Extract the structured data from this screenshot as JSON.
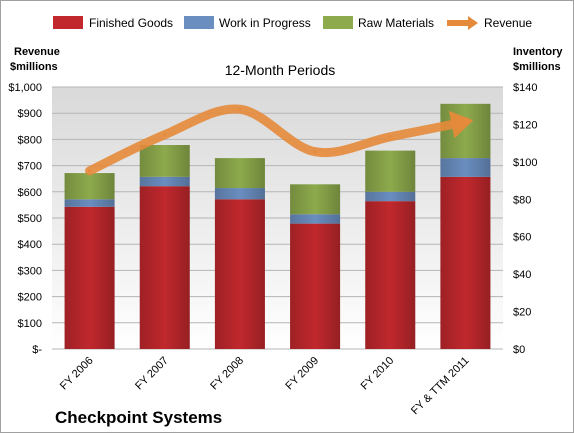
{
  "chart_data": {
    "type": "bar",
    "title": "12-Month Periods",
    "company": "Checkpoint Systems",
    "categories": [
      "FY 2006",
      "FY 2007",
      "FY 2008",
      "FY 2009",
      "FY 2010",
      "FY & TTM 2011"
    ],
    "series": [
      {
        "name": "Finished Goods",
        "color": "#C0282D",
        "values": [
          76,
          87,
          80,
          67,
          79,
          92
        ]
      },
      {
        "name": "Work in Progress",
        "color": "#6A8EC0",
        "values": [
          4,
          5,
          6,
          5,
          5,
          10
        ]
      },
      {
        "name": "Raw Materials",
        "color": "#8DAA4C",
        "values": [
          14,
          17,
          16,
          16,
          22,
          29
        ]
      }
    ],
    "line_series": {
      "name": "Revenue",
      "color": "#E58A3A",
      "values": [
        680,
        818,
        915,
        753,
        810,
        867
      ]
    },
    "left_axis": {
      "title_line1": "Revenue",
      "title_line2": "$millions",
      "ylim": [
        0,
        1000
      ],
      "ticks": [
        {
          "v": 0,
          "label": "$-"
        },
        {
          "v": 100,
          "label": "$100"
        },
        {
          "v": 200,
          "label": "$200"
        },
        {
          "v": 300,
          "label": "$300"
        },
        {
          "v": 400,
          "label": "$400"
        },
        {
          "v": 500,
          "label": "$500"
        },
        {
          "v": 600,
          "label": "$600"
        },
        {
          "v": 700,
          "label": "$700"
        },
        {
          "v": 800,
          "label": "$800"
        },
        {
          "v": 900,
          "label": "$900"
        },
        {
          "v": 1000,
          "label": "$1,000"
        }
      ]
    },
    "right_axis": {
      "title_line1": "Inventory",
      "title_line2": "$millions",
      "ylim": [
        0,
        140
      ],
      "ticks": [
        {
          "v": 0,
          "label": "$0"
        },
        {
          "v": 20,
          "label": "$20"
        },
        {
          "v": 40,
          "label": "$40"
        },
        {
          "v": 60,
          "label": "$60"
        },
        {
          "v": 80,
          "label": "$80"
        },
        {
          "v": 100,
          "label": "$100"
        },
        {
          "v": 120,
          "label": "$120"
        },
        {
          "v": 140,
          "label": "$140"
        }
      ]
    },
    "grid": true,
    "legend_position": "top"
  }
}
